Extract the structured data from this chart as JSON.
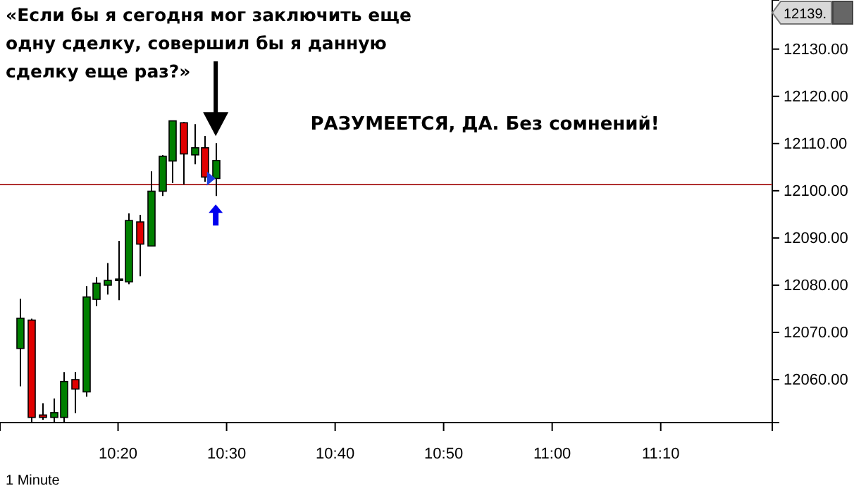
{
  "chart_data": {
    "type": "candlestick",
    "title": "«Если бы я сегодня мог заключить еще одну сделку, совершил бы я данную сделку еще раз?»",
    "x": [
      10.1833,
      10.2,
      10.2167,
      10.2333,
      10.25,
      10.2667,
      10.2833,
      10.3,
      10.3167,
      10.3333,
      10.35,
      10.3667,
      10.3833,
      10.4,
      10.4167,
      10.4333,
      10.45,
      10.4667,
      10.4833
    ],
    "ohlc": [
      [
        12066.6,
        12077.1,
        12058.6,
        12073.0
      ],
      [
        12072.6,
        12072.9,
        12051,
        12052
      ],
      [
        12052.5,
        12055,
        12051.5,
        12052
      ],
      [
        12052,
        12056,
        12051,
        12053
      ],
      [
        12052,
        12061.6,
        12051,
        12059.6
      ],
      [
        12060,
        12061.6,
        12052.9,
        12058
      ],
      [
        12057.4,
        12079.8,
        12056.4,
        12077.5
      ],
      [
        12077,
        12081.7,
        12075.6,
        12080.4
      ],
      [
        12080,
        12084.7,
        12078,
        12081
      ],
      [
        12081,
        12089.4,
        12076.8,
        12081.3
      ],
      [
        12080.7,
        12095.2,
        12080.2,
        12093.7
      ],
      [
        12093.4,
        12094.9,
        12081.9,
        12088.7
      ],
      [
        12088.3,
        12104.1,
        12088.2,
        12099.9
      ],
      [
        12099.9,
        12107.6,
        12098.9,
        12107.3
      ],
      [
        12106.3,
        12114.8,
        12101.6,
        12114.8
      ],
      [
        12114.4,
        12114.6,
        12101.3,
        12107.8
      ],
      [
        12107.6,
        12114.1,
        12105.6,
        12109.1
      ],
      [
        12109.1,
        12111.6,
        12101.9,
        12102.9
      ],
      [
        12102.6,
        12110.1,
        12098.9,
        12106.4
      ]
    ],
    "colors": [
      "#008000",
      "#e00000",
      "#e00000",
      "#008000",
      "#008000",
      "#e00000",
      "#008000",
      "#008000",
      "#008000",
      "#008000",
      "#008000",
      "#e00000",
      "#008000",
      "#008000",
      "#008000",
      "#e00000",
      "#008000",
      "#e00000",
      "#008000"
    ],
    "xlim": [
      10.152,
      11.338
    ],
    "xticks": [
      {
        "value": 10.3333,
        "label": "10:20"
      },
      {
        "value": 10.5,
        "label": "10:30"
      },
      {
        "value": 10.6667,
        "label": "10:40"
      },
      {
        "value": 10.8333,
        "label": "10:50"
      },
      {
        "value": 11,
        "label": "11:00"
      },
      {
        "value": 11.1667,
        "label": "11:10"
      }
    ],
    "ylim": [
      12050.9,
      12140.4
    ],
    "yticks": [
      {
        "value": 12060,
        "label": "12060.00"
      },
      {
        "value": 12070,
        "label": "12070.00"
      },
      {
        "value": 12080,
        "label": "12080.00"
      },
      {
        "value": 12090,
        "label": "12090.00"
      },
      {
        "value": 12100,
        "label": "12100.00"
      },
      {
        "value": 12110,
        "label": "12110.00"
      },
      {
        "value": 12120,
        "label": "12120.00"
      },
      {
        "value": 12130,
        "label": "12130.00"
      }
    ],
    "ref_lines": [
      {
        "axis": "y",
        "value": 12101.3,
        "color": "#b03030",
        "line_style": "solid"
      }
    ],
    "annotations": [
      "РАЗУМЕЕТСЯ, ДА. Без сомнений!",
      "1 Minute",
      "12139."
    ],
    "grid": false
  }
}
